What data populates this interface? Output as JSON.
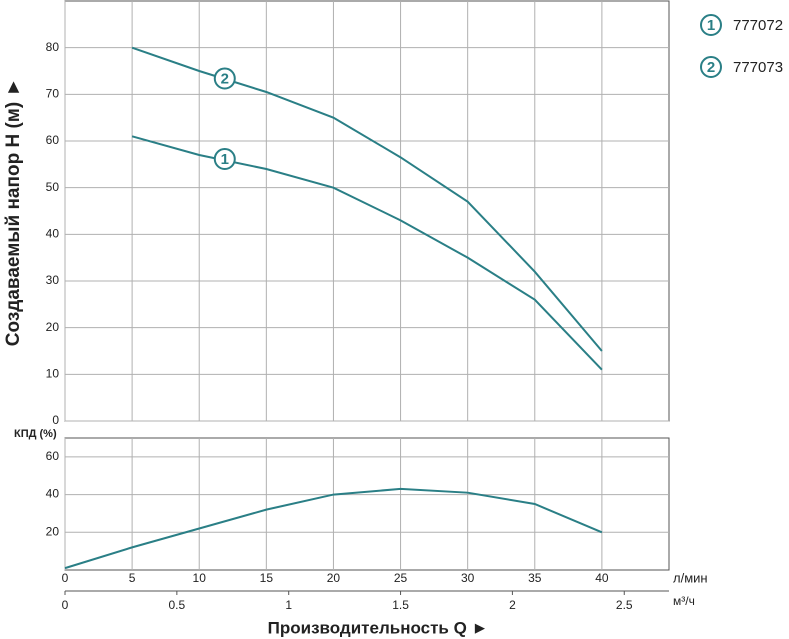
{
  "chart_data": [
    {
      "type": "line",
      "y_label": "Создаваемый напор H (м) ►",
      "x": [
        5,
        10,
        15,
        20,
        25,
        30,
        35,
        40
      ],
      "xlim": [
        0,
        45
      ],
      "ylim": [
        0,
        90
      ],
      "yticks": [
        0,
        10,
        20,
        30,
        40,
        50,
        60,
        70,
        80
      ],
      "grid": true,
      "series": [
        {
          "name": "777072",
          "label": "1",
          "color": "#2a7f86",
          "values": [
            61,
            57,
            54,
            50,
            43,
            35,
            26,
            11
          ]
        },
        {
          "name": "777073",
          "label": "2",
          "color": "#2a7f86",
          "values": [
            80,
            75,
            70.5,
            65,
            56.5,
            47,
            32,
            15
          ]
        }
      ]
    },
    {
      "type": "line",
      "y_label": "КПД (%)",
      "x": [
        0,
        5,
        10,
        15,
        20,
        25,
        30,
        35,
        40
      ],
      "xlim": [
        0,
        45
      ],
      "xticks": [
        0,
        5,
        10,
        15,
        20,
        25,
        30,
        35,
        40
      ],
      "x_unit": "л/мин",
      "ylim": [
        0,
        70
      ],
      "yticks": [
        20,
        40,
        60
      ],
      "grid": true,
      "x2lim": [
        0,
        2.7
      ],
      "x2ticks": [
        0,
        0.5,
        1,
        1.5,
        2,
        2.5
      ],
      "x2_unit": "м³/ч",
      "x_label": "Производительность Q ►",
      "series": [
        {
          "color": "#2a7f86",
          "values": [
            1,
            12,
            22,
            32,
            40,
            43,
            41,
            35,
            20
          ]
        }
      ]
    }
  ]
}
